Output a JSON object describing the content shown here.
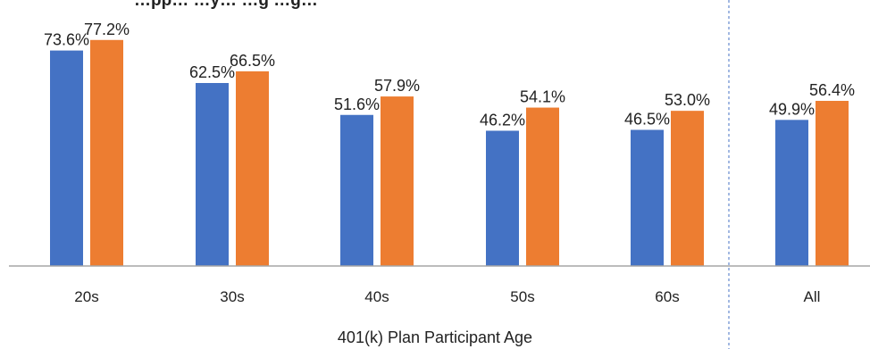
{
  "chart_data": {
    "type": "bar",
    "title": "…pp… …y… …g …g…",
    "xlabel": "401(k) Plan Participant Age",
    "ylabel": "",
    "ylim": [
      0,
      80
    ],
    "grid": false,
    "legend": "none",
    "categories": [
      "20s",
      "30s",
      "40s",
      "50s",
      "60s",
      "All"
    ],
    "value_labels": [
      [
        "73.6%",
        "77.2%"
      ],
      [
        "62.5%",
        "66.5%"
      ],
      [
        "51.6%",
        "57.9%"
      ],
      [
        "46.2%",
        "54.1%"
      ],
      [
        "46.5%",
        "53.0%"
      ],
      [
        "49.9%",
        "56.4%"
      ]
    ],
    "series": [
      {
        "values": [
          73.6,
          62.5,
          51.6,
          46.2,
          46.5,
          49.9
        ],
        "color": "#4472C4"
      },
      {
        "values": [
          77.2,
          66.5,
          57.9,
          54.1,
          53.0,
          56.4
        ],
        "color": "#ED7D31"
      }
    ],
    "separator_before_category": "All"
  }
}
